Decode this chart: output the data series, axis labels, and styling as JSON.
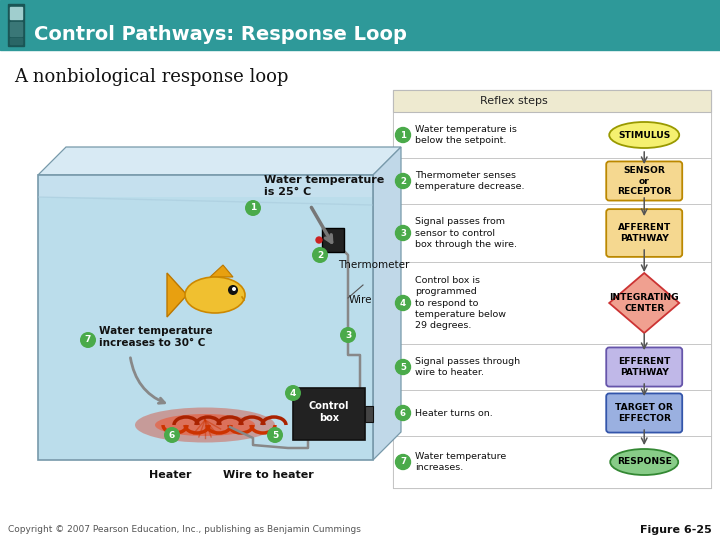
{
  "title": "Control Pathways: Response Loop",
  "subtitle": "A nonbiological response loop",
  "header_bg": "#2e9999",
  "header_icon_light": "#a0cece",
  "header_icon_dark": "#2a6666",
  "body_bg": "#ffffff",
  "copyright": "Copyright © 2007 Pearson Education, Inc., publishing as Benjamin Cummings",
  "figure_label": "Figure 6-25",
  "reflex_header": "Reflex steps",
  "reflex_header_bg": "#eeead0",
  "reflex_table_bg": "#ffffff",
  "reflex_border": "#bbbbbb",
  "step_circle_color": "#4aaa4a",
  "steps": [
    "Water temperature is\nbelow the setpoint.",
    "Thermometer senses\ntemperature decrease.",
    "Signal passes from\nsensor to control\nbox through the wire.",
    "Control box is\nprogrammed\nto respond to\ntemperature below\n29 degrees.",
    "Signal passes through\nwire to heater.",
    "Heater turns on.",
    "Water temperature\nincreases."
  ],
  "shapes": [
    {
      "label": "STIMULUS",
      "shape": "ellipse",
      "fc": "#f5f070",
      "ec": "#999900"
    },
    {
      "label": "SENSOR\nor\nRECEPTOR",
      "shape": "rounded_rect",
      "fc": "#f5d890",
      "ec": "#bb8800"
    },
    {
      "label": "AFFERENT\nPATHWAY",
      "shape": "rounded_rect",
      "fc": "#f5d890",
      "ec": "#bb8800"
    },
    {
      "label": "INTEGRATING\nCENTER",
      "shape": "diamond",
      "fc": "#f0a090",
      "ec": "#cc3333"
    },
    {
      "label": "EFFERENT\nPATHWAY",
      "shape": "rounded_rect",
      "fc": "#c0b8e8",
      "ec": "#6655aa"
    },
    {
      "label": "TARGET OR\nEFFECTOR",
      "shape": "rounded_rect",
      "fc": "#9ab0e0",
      "ec": "#3355aa"
    },
    {
      "label": "RESPONSE",
      "shape": "ellipse",
      "fc": "#88cc88",
      "ec": "#338833"
    }
  ],
  "tank_face_color": "#c5e0ee",
  "tank_back_color": "#d8eaf4",
  "tank_edge_color": "#7799aa",
  "water_color": "#b8dcea",
  "label1_text": "Water temperature\nis 25° C",
  "label7_text": "Water temperature\nincreases to 30° C",
  "label_thermo": "Thermometer",
  "label_wire": "Wire",
  "label_heater": "Heater",
  "label_wire_heater": "Wire to heater",
  "label_control": "Control\nbox"
}
